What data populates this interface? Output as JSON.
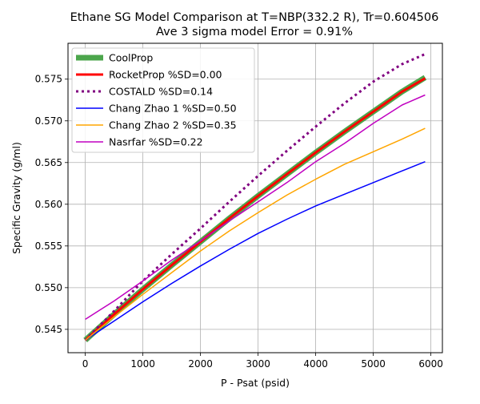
{
  "chart_data": {
    "type": "line",
    "title": "Ethane SG Model Comparison at T=NBP(332.2 R), Tr=0.604506",
    "subtitle": "Ave 3 sigma model Error = 0.91%",
    "xlabel": "P - Psat (psid)",
    "ylabel": "Specific Gravity (g/ml)",
    "xlim": [
      -300,
      6200
    ],
    "ylim": [
      0.5422,
      0.5793
    ],
    "xticks": [
      0,
      1000,
      2000,
      3000,
      4000,
      5000,
      6000
    ],
    "yticks": [
      0.545,
      0.55,
      0.555,
      0.56,
      0.565,
      0.57,
      0.575
    ],
    "xtick_labels": [
      "0",
      "1000",
      "2000",
      "3000",
      "4000",
      "5000",
      "6000"
    ],
    "ytick_labels": [
      "0.545",
      "0.550",
      "0.555",
      "0.560",
      "0.565",
      "0.570",
      "0.575"
    ],
    "grid": true,
    "legend_position": "top-left",
    "x": [
      0,
      500,
      1000,
      1500,
      2000,
      2500,
      3000,
      3500,
      4000,
      4500,
      5000,
      5500,
      5900
    ],
    "series": [
      {
        "name": "CoolProp",
        "color": "#4ca64c",
        "style": "solid",
        "width": "thick",
        "values": [
          0.5437,
          0.5468,
          0.5498,
          0.5527,
          0.5555,
          0.5583,
          0.561,
          0.5636,
          0.5662,
          0.5687,
          0.5711,
          0.5735,
          0.5752
        ]
      },
      {
        "name": "RocketProp %SD=0.00",
        "color": "#ff0000",
        "style": "solid",
        "width": "medium",
        "values": [
          0.5437,
          0.5468,
          0.5498,
          0.5527,
          0.5555,
          0.5583,
          0.561,
          0.5636,
          0.5662,
          0.5687,
          0.5711,
          0.5735,
          0.5751
        ]
      },
      {
        "name": "COSTALD %SD=0.14",
        "color": "#800080",
        "style": "dotted",
        "width": "medium",
        "values": [
          0.5437,
          0.5472,
          0.5508,
          0.554,
          0.5571,
          0.5603,
          0.5634,
          0.5664,
          0.5693,
          0.5721,
          0.5747,
          0.5768,
          0.578
        ]
      },
      {
        "name": "Chang Zhao 1 %SD=0.50",
        "color": "#0000ff",
        "style": "solid",
        "width": "thin",
        "values": [
          0.5437,
          0.546,
          0.5483,
          0.5505,
          0.5526,
          0.5546,
          0.5565,
          0.5582,
          0.5598,
          0.5612,
          0.5626,
          0.564,
          0.5651
        ]
      },
      {
        "name": "Chang Zhao 2 %SD=0.35",
        "color": "#ffa500",
        "style": "solid",
        "width": "thin",
        "values": [
          0.5437,
          0.5465,
          0.5492,
          0.5518,
          0.5544,
          0.5568,
          0.559,
          0.5611,
          0.563,
          0.5648,
          0.5663,
          0.5678,
          0.5691
        ]
      },
      {
        "name": "Nasrfar %SD=0.22",
        "color": "#c000c0",
        "style": "solid",
        "width": "thin",
        "values": [
          0.5462,
          0.5484,
          0.5508,
          0.5533,
          0.5556,
          0.558,
          0.5603,
          0.5626,
          0.5651,
          0.5673,
          0.5697,
          0.5719,
          0.5731
        ]
      }
    ]
  }
}
